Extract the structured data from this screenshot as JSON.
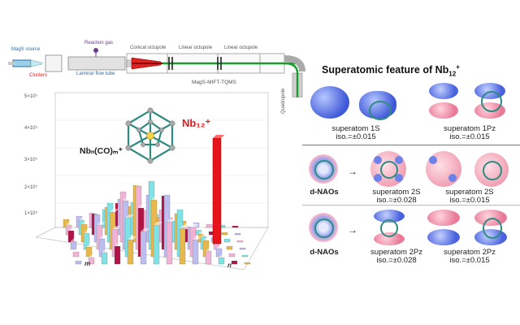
{
  "apparatus": {
    "source_label": "MagS source",
    "cluster_label": "Clusters",
    "reaction_cell_label": "Reaction gas",
    "flow_tube_label": "Laminar flow tube",
    "conical_octupole_label": "Conical octupole",
    "linear_octupole_1_label": "Linear octupole",
    "linear_octupole_2_label": "Linear octupole",
    "instrument_label": "MagS-MIFT-TQMS",
    "quadrupole_label": "Quadrupole"
  },
  "spectrum": {
    "y_ticks": [
      "5×10⁵",
      "4×10⁵",
      "3×10⁵",
      "2×10⁵",
      "1×10⁵"
    ],
    "series_label": "Nbₙ(CO)ₘ⁺",
    "highlight_label": "Nb₁₂⁺",
    "x_axis_label": "m",
    "z_axis_label": "n",
    "colors": {
      "highlight": "#e8141c",
      "maroon": "#b01446",
      "cyan": "#7fe3e6",
      "gold": "#e7b94c",
      "pink": "#f0b3d6",
      "lavender": "#bcbcef",
      "teal_frame": "#2e8b80"
    }
  },
  "right_panel": {
    "title_main": "Superatomic feature of Nb",
    "title_sub": "12",
    "title_sup": "+",
    "orbitals": [
      {
        "name": "superatom 1S",
        "iso": "iso.=±0.015"
      },
      {
        "name": "superatom 1Pz",
        "iso": "iso.=±0.015"
      },
      {
        "name": "superatom 2S",
        "iso": "iso.=±0.028"
      },
      {
        "name": "superatom 2S",
        "iso": "iso.=±0.015"
      },
      {
        "name": "superatom 2Pz",
        "iso": "iso.=±0.028"
      },
      {
        "name": "superatom 2Pz",
        "iso": "iso.=±0.015"
      }
    ],
    "dnao_label_1": "d-NAOs",
    "dnao_label_2": "d-NAOs"
  }
}
